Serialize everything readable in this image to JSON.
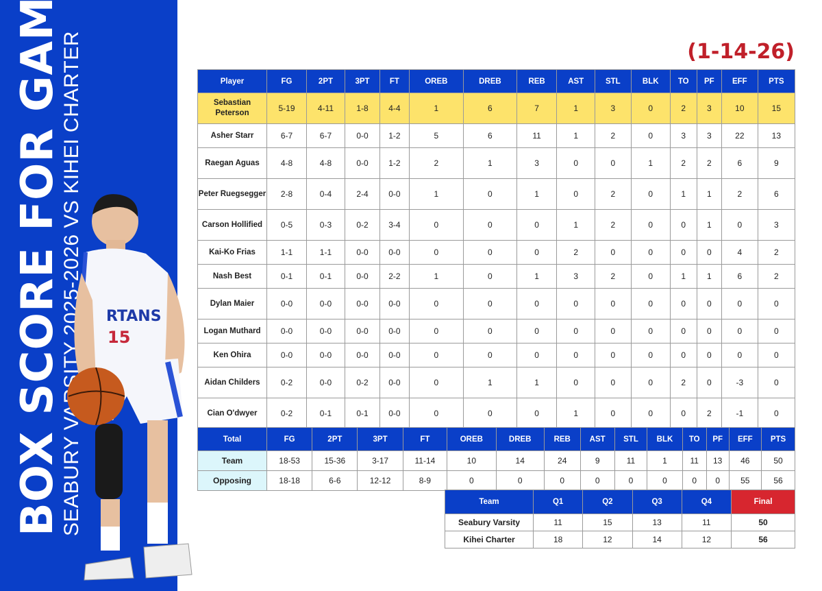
{
  "title": {
    "main": "BOX SCORE FOR GAME",
    "sub": "SEABURY VARSITY 2025-2026 VS KIHEI CHARTER"
  },
  "date": "(1-14-26)",
  "colors": {
    "brand_blue": "#0a3fc8",
    "highlight": "#fde36b",
    "final_red": "#d7262f",
    "date_red": "#c0202a"
  },
  "stats": {
    "headers": [
      "Player",
      "FG",
      "2PT",
      "3PT",
      "FT",
      "OREB",
      "DREB",
      "REB",
      "AST",
      "STL",
      "BLK",
      "TO",
      "PF",
      "EFF",
      "PTS"
    ],
    "rows": [
      [
        "Sebastian Peterson",
        "5-19",
        "4-11",
        "1-8",
        "4-4",
        "1",
        "6",
        "7",
        "1",
        "3",
        "0",
        "2",
        "3",
        "10",
        "15"
      ],
      [
        "Asher Starr",
        "6-7",
        "6-7",
        "0-0",
        "1-2",
        "5",
        "6",
        "11",
        "1",
        "2",
        "0",
        "3",
        "3",
        "22",
        "13"
      ],
      [
        "Raegan Aguas",
        "4-8",
        "4-8",
        "0-0",
        "1-2",
        "2",
        "1",
        "3",
        "0",
        "0",
        "1",
        "2",
        "2",
        "6",
        "9"
      ],
      [
        "Peter Ruegsegger",
        "2-8",
        "0-4",
        "2-4",
        "0-0",
        "1",
        "0",
        "1",
        "0",
        "2",
        "0",
        "1",
        "1",
        "2",
        "6"
      ],
      [
        "Carson Hollified",
        "0-5",
        "0-3",
        "0-2",
        "3-4",
        "0",
        "0",
        "0",
        "1",
        "2",
        "0",
        "0",
        "1",
        "0",
        "3"
      ],
      [
        "Kai-Ko Frias",
        "1-1",
        "1-1",
        "0-0",
        "0-0",
        "0",
        "0",
        "0",
        "2",
        "0",
        "0",
        "0",
        "0",
        "4",
        "2"
      ],
      [
        "Nash Best",
        "0-1",
        "0-1",
        "0-0",
        "2-2",
        "1",
        "0",
        "1",
        "3",
        "2",
        "0",
        "1",
        "1",
        "6",
        "2"
      ],
      [
        "Dylan Maier",
        "0-0",
        "0-0",
        "0-0",
        "0-0",
        "0",
        "0",
        "0",
        "0",
        "0",
        "0",
        "0",
        "0",
        "0",
        "0"
      ],
      [
        "Logan Muthard",
        "0-0",
        "0-0",
        "0-0",
        "0-0",
        "0",
        "0",
        "0",
        "0",
        "0",
        "0",
        "0",
        "0",
        "0",
        "0"
      ],
      [
        "Ken Ohira",
        "0-0",
        "0-0",
        "0-0",
        "0-0",
        "0",
        "0",
        "0",
        "0",
        "0",
        "0",
        "0",
        "0",
        "0",
        "0"
      ],
      [
        "Aidan Childers",
        "0-2",
        "0-0",
        "0-2",
        "0-0",
        "0",
        "1",
        "1",
        "0",
        "0",
        "0",
        "2",
        "0",
        "-3",
        "0"
      ],
      [
        "Cian O'dwyer",
        "0-2",
        "0-1",
        "0-1",
        "0-0",
        "0",
        "0",
        "0",
        "1",
        "0",
        "0",
        "0",
        "2",
        "-1",
        "0"
      ]
    ]
  },
  "totals": {
    "headers": [
      "Total",
      "FG",
      "2PT",
      "3PT",
      "FT",
      "OREB",
      "DREB",
      "REB",
      "AST",
      "STL",
      "BLK",
      "TO",
      "PF",
      "EFF",
      "PTS"
    ],
    "rows": [
      [
        "Team",
        "18-53",
        "15-36",
        "3-17",
        "11-14",
        "10",
        "14",
        "24",
        "9",
        "11",
        "1",
        "11",
        "13",
        "46",
        "50"
      ],
      [
        "Opposing",
        "18-18",
        "6-6",
        "12-12",
        "8-9",
        "0",
        "0",
        "0",
        "0",
        "0",
        "0",
        "0",
        "0",
        "55",
        "56"
      ]
    ]
  },
  "quarters": {
    "headers": [
      "Team",
      "Q1",
      "Q2",
      "Q3",
      "Q4",
      "Final"
    ],
    "rows": [
      [
        "Seabury Varsity",
        "11",
        "15",
        "13",
        "11",
        "50"
      ],
      [
        "Kihei Charter",
        "18",
        "12",
        "14",
        "12",
        "56"
      ]
    ]
  }
}
